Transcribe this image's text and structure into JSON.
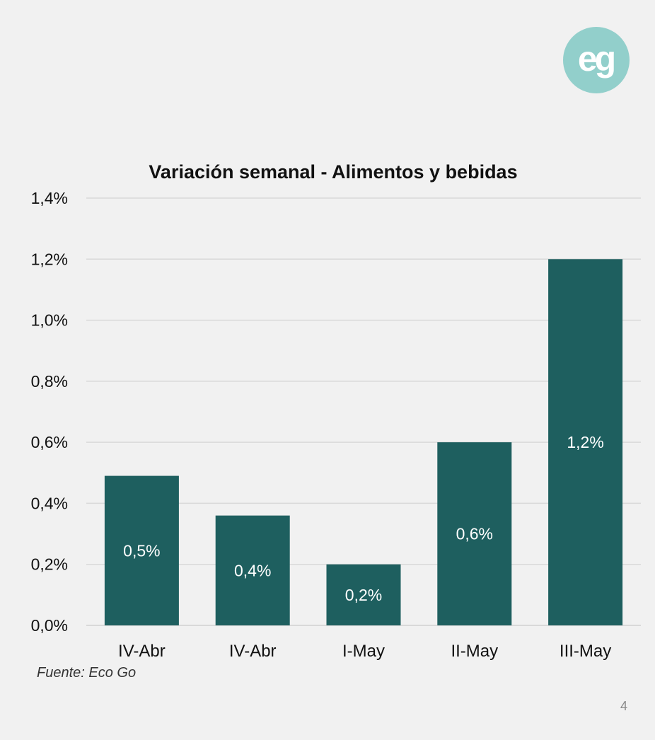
{
  "slide": {
    "source": "Fuente: Eco Go",
    "page_number": "4",
    "logo_text": "eg",
    "colors": {
      "background": "#f1f1f1",
      "logo": "#92cfcb"
    }
  },
  "chart_data": {
    "type": "bar",
    "title": "Variación semanal - Alimentos y bebidas",
    "xlabel": "",
    "ylabel": "",
    "categories": [
      "IV-Abr",
      "IV-Abr",
      "I-May",
      "II-May",
      "III-May"
    ],
    "values": [
      0.49,
      0.36,
      0.2,
      0.6,
      1.2
    ],
    "data_labels": [
      "0,5%",
      "0,4%",
      "0,2%",
      "0,6%",
      "1,2%"
    ],
    "ylim": [
      0,
      1.4
    ],
    "y_ticks": [
      0,
      0.2,
      0.4,
      0.6,
      0.8,
      1.0,
      1.2,
      1.4
    ],
    "y_tick_labels": [
      "0,0%",
      "0,2%",
      "0,4%",
      "0,6%",
      "0,8%",
      "1,0%",
      "1,2%",
      "1,4%"
    ],
    "grid": true,
    "legend": "none",
    "bar_color": "#1e5f5f",
    "grid_color": "#d9d9d9"
  }
}
